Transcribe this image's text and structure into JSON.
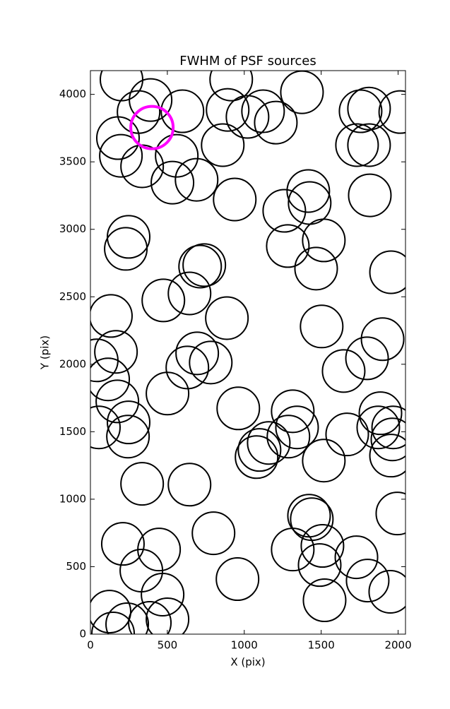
{
  "chart_data": {
    "type": "scatter",
    "title": "FWHM of PSF sources",
    "x_label": "X (pix)",
    "y_label": "Y (pix)",
    "xlim": [
      0,
      2048
    ],
    "ylim": [
      0,
      4176
    ],
    "xticks": [
      0,
      500,
      1000,
      1500,
      2000
    ],
    "yticks": [
      0,
      500,
      1000,
      1500,
      2000,
      2500,
      3000,
      3500,
      4000
    ],
    "series": [
      {
        "color": "#000000",
        "linewidth": 2,
        "x": [
          202,
          391,
          313,
          598,
          179,
          198,
          336,
          561,
          533,
          690,
          915,
          892,
          1021,
          1122,
          1205,
          1375,
          860,
          938,
          1756,
          1811,
          1733,
          1811,
          2014,
          1816,
          1416,
          1425,
          1260,
          1283,
          1517,
          1467,
          248,
          230,
          740,
          713,
          1954,
          474,
          644,
          887,
          133,
          1503,
          1899,
          166,
          41,
          115,
          694,
          782,
          630,
          1646,
          1798,
          175,
          501,
          961,
          55,
          248,
          244,
          1315,
          1343,
          1159,
          1099,
          1080,
          1287,
          1669,
          1885,
          1871,
          1968,
          1954,
          1517,
          1963,
          336,
          644,
          1995,
          1421,
          1439,
          211,
          446,
          800,
          331,
          469,
          501,
          124,
          239,
          147,
          386,
          956,
          1315,
          1508,
          1490,
          1729,
          1802,
          1949,
          1522
        ],
        "values": [
          4110,
          3958,
          3869,
          3875,
          3676,
          3545,
          3467,
          3545,
          3346,
          3367,
          4110,
          3885,
          3833,
          3875,
          3791,
          4016,
          3624,
          3221,
          3875,
          3895,
          3624,
          3624,
          3869,
          3252,
          3284,
          3195,
          3137,
          2876,
          2918,
          2709,
          2944,
          2855,
          2735,
          2724,
          2682,
          2473,
          2525,
          2342,
          2358,
          2280,
          2186,
          2092,
          2029,
          1888,
          2081,
          2013,
          1976,
          1950,
          2044,
          1725,
          1783,
          1673,
          1532,
          1569,
          1464,
          1652,
          1532,
          1417,
          1365,
          1312,
          1464,
          1480,
          1637,
          1532,
          1532,
          1323,
          1286,
          1443,
          1114,
          1108,
          894,
          878,
          852,
          669,
          627,
          748,
          471,
          293,
          110,
          167,
          73,
          5,
          84,
          408,
          627,
          654,
          512,
          570,
          397,
          314,
          251
        ]
      },
      {
        "color": "#ff00ff",
        "linewidth": 4,
        "x": [
          400
        ],
        "values": [
          3754
        ]
      }
    ]
  }
}
